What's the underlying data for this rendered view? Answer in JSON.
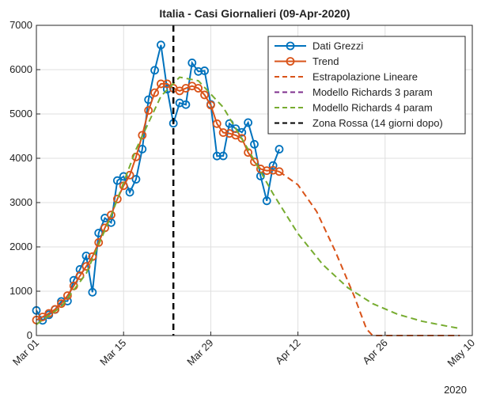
{
  "chart_data": {
    "type": "line",
    "title": "Italia - Casi Giornalieri (09-Apr-2020)",
    "xlim": [
      "2020-03-01",
      "2020-05-10"
    ],
    "xticks": [
      {
        "value": "2020-03-01",
        "label": "Mar 01"
      },
      {
        "value": "2020-03-15",
        "label": "Mar 15"
      },
      {
        "value": "2020-03-29",
        "label": "Mar 29"
      },
      {
        "value": "2020-04-12",
        "label": "Apr 12"
      },
      {
        "value": "2020-04-26",
        "label": "Apr 26"
      },
      {
        "value": "2020-05-10",
        "label": "May 10"
      }
    ],
    "x_secondary_label": "2020",
    "ylim": [
      0,
      7000
    ],
    "yticks": [
      0,
      1000,
      2000,
      3000,
      4000,
      5000,
      6000,
      7000
    ],
    "grid": true,
    "legend": "top-right",
    "series": [
      {
        "name": "Dati Grezzi",
        "color": "#0072bd",
        "style": "solid",
        "markers": true,
        "x": [
          "2020-03-01",
          "2020-03-02",
          "2020-03-03",
          "2020-03-04",
          "2020-03-05",
          "2020-03-06",
          "2020-03-07",
          "2020-03-08",
          "2020-03-09",
          "2020-03-10",
          "2020-03-11",
          "2020-03-12",
          "2020-03-13",
          "2020-03-14",
          "2020-03-15",
          "2020-03-16",
          "2020-03-17",
          "2020-03-18",
          "2020-03-19",
          "2020-03-20",
          "2020-03-21",
          "2020-03-22",
          "2020-03-23",
          "2020-03-24",
          "2020-03-25",
          "2020-03-26",
          "2020-03-27",
          "2020-03-28",
          "2020-03-29",
          "2020-03-30",
          "2020-03-31",
          "2020-04-01",
          "2020-04-02",
          "2020-04-03",
          "2020-04-04",
          "2020-04-05",
          "2020-04-06",
          "2020-04-07",
          "2020-04-08",
          "2020-04-09"
        ],
        "values": [
          566,
          342,
          466,
          587,
          769,
          778,
          1247,
          1492,
          1797,
          977,
          2313,
          2651,
          2547,
          3497,
          3590,
          3233,
          3526,
          4207,
          5322,
          5986,
          6557,
          5560,
          4789,
          5249,
          5210,
          6153,
          5959,
          5974,
          5217,
          4050,
          4053,
          4782,
          4668,
          4585,
          4805,
          4316,
          3599,
          3039,
          3836,
          4204
        ]
      },
      {
        "name": "Trend",
        "color": "#d95319",
        "style": "solid",
        "markers": true,
        "x": [
          "2020-03-01",
          "2020-03-02",
          "2020-03-03",
          "2020-03-04",
          "2020-03-05",
          "2020-03-06",
          "2020-03-07",
          "2020-03-08",
          "2020-03-09",
          "2020-03-10",
          "2020-03-11",
          "2020-03-12",
          "2020-03-13",
          "2020-03-14",
          "2020-03-15",
          "2020-03-16",
          "2020-03-17",
          "2020-03-18",
          "2020-03-19",
          "2020-03-20",
          "2020-03-21",
          "2020-03-22",
          "2020-03-23",
          "2020-03-24",
          "2020-03-25",
          "2020-03-26",
          "2020-03-27",
          "2020-03-28",
          "2020-03-29",
          "2020-03-30",
          "2020-03-31",
          "2020-04-01",
          "2020-04-02",
          "2020-04-03",
          "2020-04-04",
          "2020-04-05",
          "2020-04-06",
          "2020-04-07",
          "2020-04-08",
          "2020-04-09"
        ],
        "values": [
          350,
          420,
          500,
          590,
          720,
          900,
          1120,
          1350,
          1560,
          1780,
          2100,
          2430,
          2720,
          3080,
          3380,
          3620,
          4030,
          4520,
          5080,
          5480,
          5680,
          5680,
          5580,
          5520,
          5580,
          5630,
          5580,
          5430,
          5200,
          4780,
          4580,
          4560,
          4520,
          4450,
          4130,
          3920,
          3760,
          3720,
          3730,
          3700
        ]
      },
      {
        "name": "Estrapolazione Lineare",
        "color": "#d95319",
        "style": "dashed",
        "markers": false,
        "x": [
          "2020-04-09",
          "2020-04-12",
          "2020-04-15",
          "2020-04-18",
          "2020-04-21",
          "2020-04-23",
          "2020-04-24",
          "2020-05-01",
          "2020-05-08"
        ],
        "values": [
          3700,
          3400,
          2800,
          1900,
          900,
          150,
          0,
          0,
          0
        ]
      },
      {
        "name": "Modello Richards 3 param",
        "color": "#7e2f8e",
        "style": "dashed",
        "markers": false,
        "x": [],
        "values": []
      },
      {
        "name": "Modello Richards 4 param",
        "color": "#77ac30",
        "style": "dashed",
        "markers": false,
        "x": [
          "2020-03-01",
          "2020-03-05",
          "2020-03-09",
          "2020-03-13",
          "2020-03-17",
          "2020-03-21",
          "2020-03-24",
          "2020-03-27",
          "2020-03-31",
          "2020-04-04",
          "2020-04-08",
          "2020-04-12",
          "2020-04-16",
          "2020-04-20",
          "2020-04-24",
          "2020-04-28",
          "2020-05-02",
          "2020-05-06",
          "2020-05-08"
        ],
        "values": [
          250,
          650,
          1400,
          2700,
          4200,
          5400,
          5830,
          5750,
          5150,
          4200,
          3200,
          2300,
          1600,
          1080,
          720,
          480,
          320,
          210,
          160
        ]
      },
      {
        "name": "Zona Rossa (14 giorni dopo)",
        "color": "#000000",
        "style": "dashed",
        "markers": false,
        "vline": "2020-03-23"
      }
    ]
  }
}
